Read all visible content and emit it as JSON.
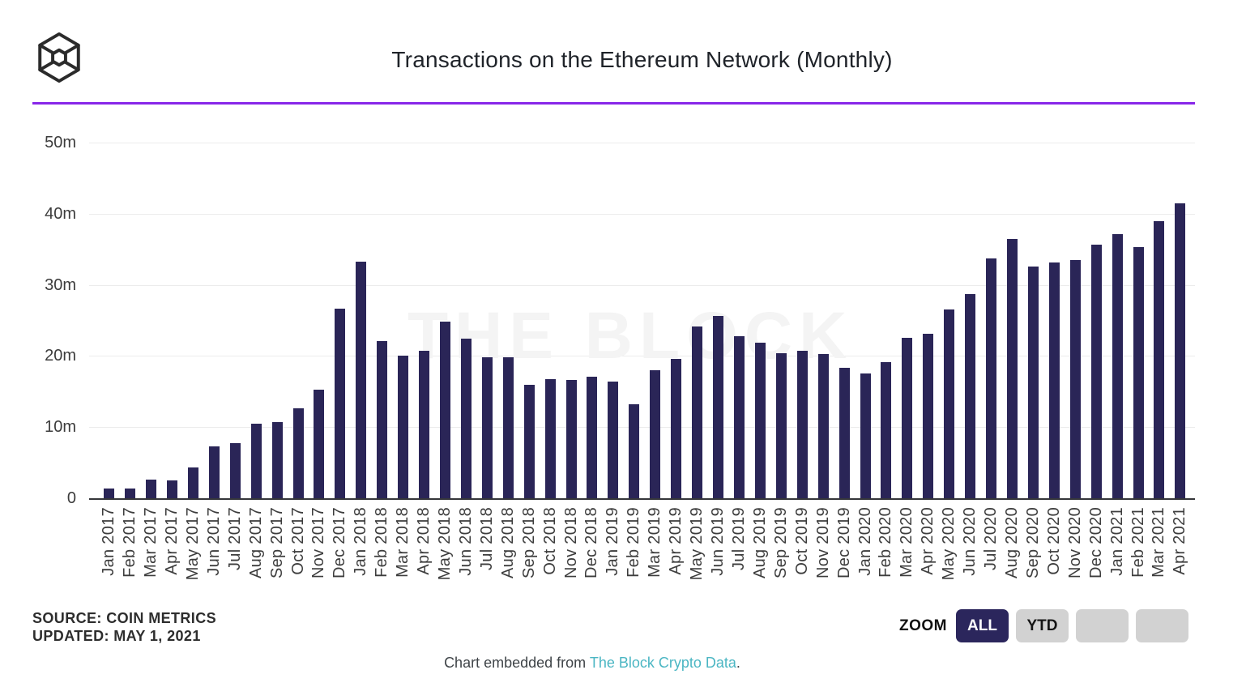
{
  "header": {
    "title": "Transactions on the Ethereum Network (Monthly)"
  },
  "branding": {
    "logo": "the-block-cube-logo",
    "watermark": "THE BLOCK"
  },
  "chart_data": {
    "type": "bar",
    "title": "Transactions on the Ethereum Network (Monthly)",
    "unit": "millions of transactions per month",
    "categories": [
      "Jan 2017",
      "Feb 2017",
      "Mar 2017",
      "Apr 2017",
      "May 2017",
      "Jun 2017",
      "Jul 2017",
      "Aug 2017",
      "Sep 2017",
      "Oct 2017",
      "Nov 2017",
      "Dec 2017",
      "Jan 2018",
      "Feb 2018",
      "Mar 2018",
      "Apr 2018",
      "May 2018",
      "Jun 2018",
      "Jul 2018",
      "Aug 2018",
      "Sep 2018",
      "Oct 2018",
      "Nov 2018",
      "Dec 2018",
      "Jan 2019",
      "Feb 2019",
      "Mar 2019",
      "Apr 2019",
      "May 2019",
      "Jun 2019",
      "Jul 2019",
      "Aug 2019",
      "Sep 2019",
      "Oct 2019",
      "Nov 2019",
      "Dec 2019",
      "Jan 2020",
      "Feb 2020",
      "Mar 2020",
      "Apr 2020",
      "May 2020",
      "Jun 2020",
      "Jul 2020",
      "Aug 2020",
      "Sep 2020",
      "Oct 2020",
      "Nov 2020",
      "Dec 2020",
      "Jan 2021",
      "Feb 2021",
      "Mar 2021",
      "Apr 2021"
    ],
    "values": [
      1.4,
      1.4,
      2.6,
      2.5,
      4.3,
      7.3,
      7.8,
      10.5,
      10.7,
      12.6,
      15.3,
      26.7,
      33.3,
      22.1,
      20.0,
      20.7,
      24.8,
      22.4,
      19.8,
      19.8,
      16.0,
      16.8,
      16.6,
      17.1,
      16.4,
      13.2,
      18.0,
      19.6,
      24.2,
      25.6,
      22.8,
      21.9,
      20.4,
      20.7,
      20.3,
      18.3,
      17.5,
      19.1,
      22.6,
      23.1,
      26.5,
      28.7,
      33.7,
      36.4,
      32.6,
      33.1,
      33.5,
      35.7,
      37.1,
      35.3,
      38.9,
      41.5
    ],
    "yticks": [
      "0",
      "10m",
      "20m",
      "30m",
      "40m",
      "50m"
    ],
    "ylim": [
      0,
      50
    ],
    "grid": "horizontal",
    "legend": "none"
  },
  "footer_left": {
    "source_line": "SOURCE: COIN METRICS",
    "updated_line": "UPDATED: MAY 1, 2021"
  },
  "zoom_controls": {
    "label": "ZOOM",
    "buttons": [
      {
        "label": "ALL",
        "active": true
      },
      {
        "label": "YTD",
        "active": false
      },
      {
        "label": "",
        "active": false
      },
      {
        "label": "",
        "active": false
      }
    ]
  },
  "embed_footer": {
    "prefix": "Chart embedded from ",
    "link": "The Block Crypto Data",
    "suffix": "."
  },
  "colors": {
    "bar": "#2a2557",
    "accent_purple": "#8826e9",
    "link_teal": "#4bb6c3",
    "button_active_bg": "#2b265c",
    "button_inactive_bg": "#d2d2d2",
    "watermark_gray": "#f4f4f4"
  }
}
